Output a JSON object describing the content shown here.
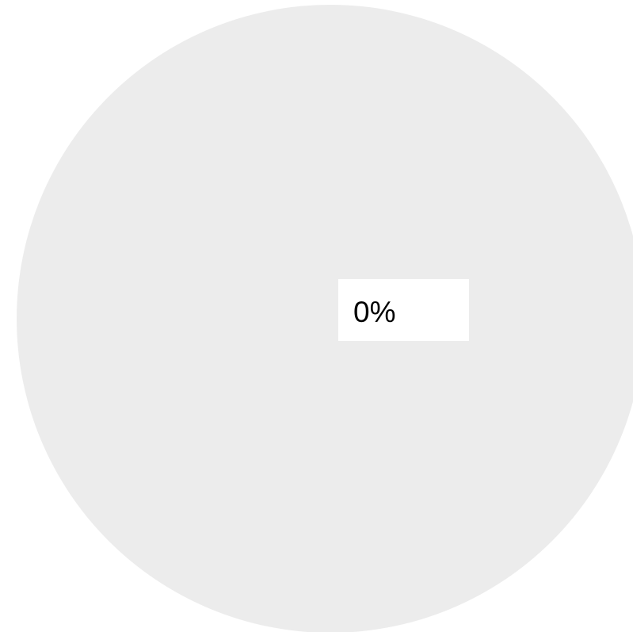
{
  "chart_data": {
    "type": "pie",
    "slices": [
      {
        "label": "0%",
        "value": 0,
        "color": "#ececec"
      }
    ]
  }
}
